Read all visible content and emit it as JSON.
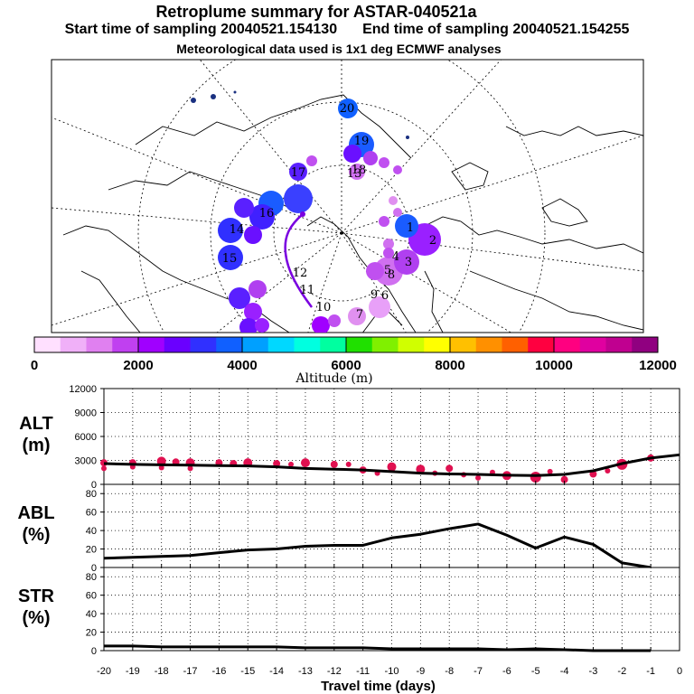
{
  "header": {
    "title": "Retroplume summary for ASTAR-040521a",
    "start_text": "Start time of sampling 20040521.154130",
    "end_text": "End time of sampling 20040521.154255",
    "met_text": "Meteorological data used is 1x1 deg ECMWF analyses"
  },
  "colorbar": {
    "title": "Altitude (m)",
    "tick_labels": [
      "0",
      "2000",
      "4000",
      "6000",
      "8000",
      "10000",
      "12000"
    ],
    "colors": [
      "#ffe0ff",
      "#f0b0f8",
      "#e080f0",
      "#c040f0",
      "#a000ff",
      "#6a00ff",
      "#3030ff",
      "#1060ff",
      "#00a0ff",
      "#00d8ff",
      "#00ffe0",
      "#00ffa0",
      "#20e000",
      "#80f000",
      "#d0ff00",
      "#ffff00",
      "#ffc000",
      "#ff9000",
      "#ff6000",
      "#ff0040",
      "#ff0080",
      "#e000a0",
      "#c00090",
      "#900080"
    ]
  },
  "map": {
    "labels": [
      {
        "text": "20",
        "color": "#1a5cff"
      },
      {
        "text": "19",
        "color": "#2a40ff"
      },
      {
        "text": "18",
        "color": "#5a20ff"
      },
      {
        "text": "17",
        "color": "#6a10ff"
      },
      {
        "text": "16",
        "color": "#3a40ff"
      },
      {
        "text": "15",
        "color": "#3030ff"
      },
      {
        "text": "14",
        "color": "#4020ff"
      },
      {
        "text": "13",
        "color": "#c060f0"
      },
      {
        "text": "12",
        "color": "#a000ff"
      },
      {
        "text": "11",
        "color": "#9a00ff"
      },
      {
        "text": "10",
        "color": "#b040f0"
      },
      {
        "text": "9",
        "color": "#d070f0"
      },
      {
        "text": "8",
        "color": "#c050f0"
      },
      {
        "text": "7",
        "color": "#e090f0"
      },
      {
        "text": "6",
        "color": "#e8a0f8"
      },
      {
        "text": "5",
        "color": "#d070f0"
      },
      {
        "text": "4",
        "color": "#c050f0"
      },
      {
        "text": "3",
        "color": "#b040f0"
      },
      {
        "text": "2",
        "color": "#9a20ff"
      },
      {
        "text": "1",
        "color": "#1a5cff"
      }
    ]
  },
  "chart_data": [
    {
      "type": "line",
      "name": "ALT",
      "ylabel": "ALT\n(m)",
      "ylabel_lines": [
        "ALT",
        "(m)"
      ],
      "ylim": [
        0,
        12000
      ],
      "yticks": [
        0,
        3000,
        6000,
        9000,
        12000
      ],
      "x": [
        -20,
        -19,
        -18,
        -17,
        -16,
        -15,
        -14,
        -13,
        -12,
        -11,
        -10,
        -9,
        -8,
        -7,
        -6,
        -5,
        -4,
        -3,
        -2,
        -1,
        0
      ],
      "series": [
        {
          "name": "mean altitude",
          "values": [
            2600,
            2500,
            2450,
            2400,
            2350,
            2300,
            2200,
            2000,
            1900,
            1800,
            1600,
            1400,
            1300,
            1250,
            1150,
            1100,
            1250,
            1700,
            2600,
            3300,
            3700
          ]
        }
      ],
      "scatter": {
        "name": "particle clusters",
        "color": "#e01050",
        "x": [
          -20,
          -20,
          -19,
          -19,
          -18,
          -18,
          -17.5,
          -17,
          -17,
          -16,
          -15.5,
          -15,
          -14,
          -13.5,
          -13,
          -12,
          -11.5,
          -11,
          -10.5,
          -10,
          -9,
          -8.5,
          -8,
          -7.5,
          -7,
          -6.5,
          -6,
          -5,
          -4.5,
          -4,
          -3,
          -2.5,
          -2,
          -1
        ],
        "y": [
          2700,
          2000,
          2700,
          2200,
          2900,
          2100,
          2800,
          2700,
          2000,
          2700,
          2600,
          2700,
          2600,
          2500,
          2700,
          2500,
          2500,
          1800,
          1400,
          2200,
          1900,
          1400,
          2000,
          1200,
          800,
          1500,
          1100,
          900,
          1600,
          600,
          1300,
          1700,
          2500,
          3300
        ],
        "sizes": [
          4,
          3,
          4,
          3,
          5,
          3,
          4,
          5,
          3,
          4,
          4,
          5,
          4,
          3,
          5,
          4,
          3,
          4,
          3,
          5,
          5,
          3,
          4,
          3,
          3,
          3,
          5,
          6,
          3,
          4,
          4,
          3,
          6,
          4
        ]
      }
    },
    {
      "type": "line",
      "name": "ABL",
      "ylabel": "ABL\n(%)",
      "ylabel_lines": [
        "ABL",
        "(%)"
      ],
      "ylim": [
        0,
        90
      ],
      "yticks": [
        0,
        20,
        40,
        60,
        80
      ],
      "x": [
        -20,
        -19,
        -18,
        -17,
        -16,
        -15,
        -14,
        -13,
        -12,
        -11,
        -10,
        -9,
        -8,
        -7,
        -6,
        -5,
        -4,
        -3,
        -2,
        -1
      ],
      "series": [
        {
          "name": "boundary layer fraction",
          "values": [
            10,
            11,
            12,
            13,
            16,
            19,
            20,
            23,
            24,
            24,
            32,
            36,
            42,
            47,
            35,
            21,
            33,
            25,
            5,
            0
          ]
        }
      ]
    },
    {
      "type": "line",
      "name": "STR",
      "ylabel": "STR\n(%)",
      "ylabel_lines": [
        "STR",
        "(%)"
      ],
      "ylim": [
        0,
        90
      ],
      "yticks": [
        0,
        20,
        40,
        60,
        80
      ],
      "x": [
        -20,
        -19,
        -18,
        -17,
        -16,
        -15,
        -14,
        -13,
        -12,
        -11,
        -10,
        -9,
        -8,
        -7,
        -6,
        -5,
        -4,
        -3,
        -2,
        -1
      ],
      "series": [
        {
          "name": "stratospheric fraction",
          "values": [
            5,
            5,
            4,
            4,
            4,
            4,
            4,
            3,
            3,
            3,
            2,
            2,
            2,
            2,
            1,
            2,
            1,
            0,
            0,
            0
          ]
        }
      ],
      "xlabel": "Travel time (days)",
      "xticks": [
        -20,
        -19,
        -18,
        -17,
        -16,
        -15,
        -14,
        -13,
        -12,
        -11,
        -10,
        -9,
        -8,
        -7,
        -6,
        -5,
        -4,
        -3,
        -2,
        -1,
        0
      ],
      "xtick_labels": [
        "-20",
        "-19",
        "-18",
        "-17",
        "-16",
        "-15",
        "-14",
        "-13",
        "-12",
        "-11",
        "-10",
        "-9",
        "-8",
        "-7",
        "-6",
        "-5",
        "-4",
        "-3",
        "-2",
        "-1",
        "0"
      ]
    }
  ]
}
